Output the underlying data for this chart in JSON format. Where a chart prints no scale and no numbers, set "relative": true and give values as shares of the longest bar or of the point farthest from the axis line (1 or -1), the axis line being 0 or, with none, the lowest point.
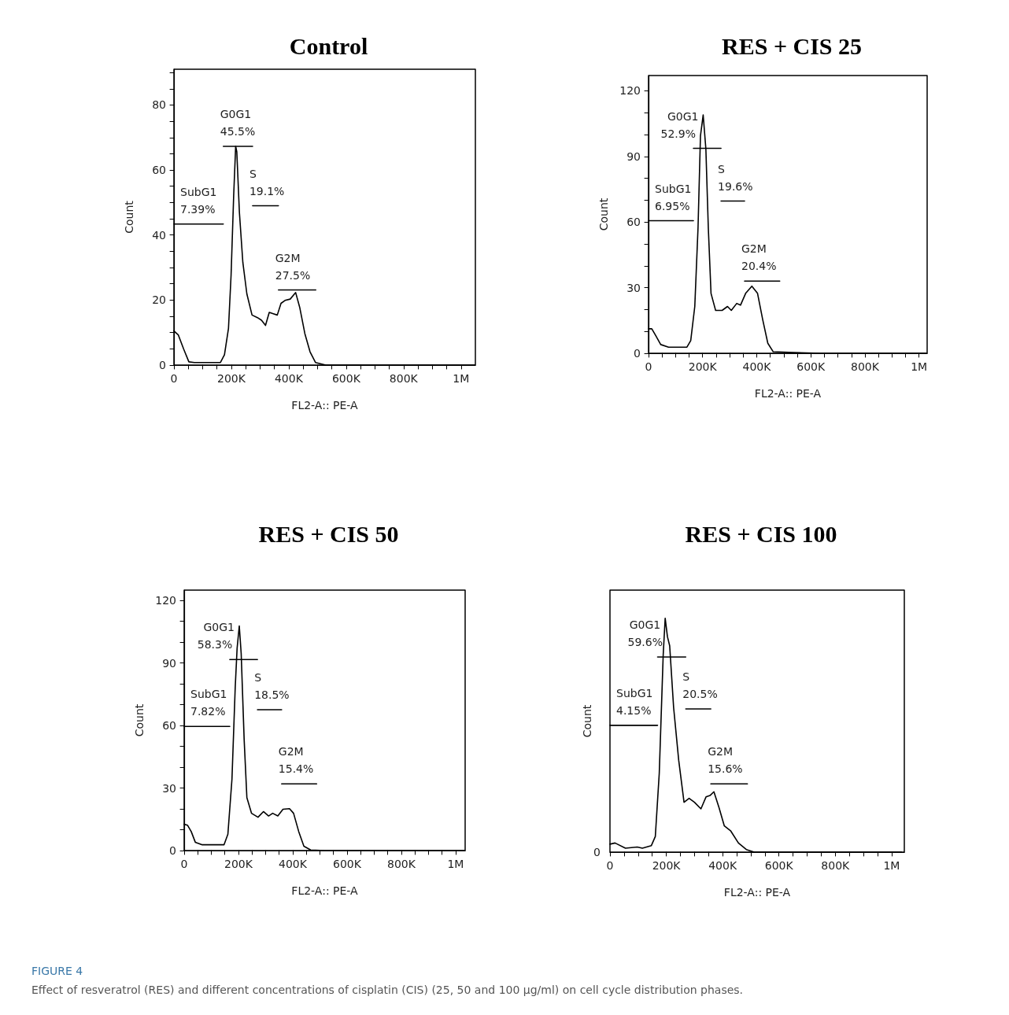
{
  "chart_data": [
    {
      "type": "line",
      "title": "Control",
      "xlabel": "FL2-A:: PE-A",
      "ylabel": "Count",
      "xlim": [
        0,
        1050000
      ],
      "ylim": [
        0,
        91
      ],
      "xticks": [
        {
          "value": 0,
          "label": "0"
        },
        {
          "value": 50000,
          "label": null
        },
        {
          "value": 100000,
          "label": null
        },
        {
          "value": 150000,
          "label": null
        },
        {
          "value": 200000,
          "label": "200K"
        },
        {
          "value": 250000,
          "label": null
        },
        {
          "value": 300000,
          "label": null
        },
        {
          "value": 350000,
          "label": null
        },
        {
          "value": 400000,
          "label": "400K"
        },
        {
          "value": 450000,
          "label": null
        },
        {
          "value": 500000,
          "label": null
        },
        {
          "value": 550000,
          "label": null
        },
        {
          "value": 600000,
          "label": "600K"
        },
        {
          "value": 650000,
          "label": null
        },
        {
          "value": 700000,
          "label": null
        },
        {
          "value": 750000,
          "label": null
        },
        {
          "value": 800000,
          "label": "800K"
        },
        {
          "value": 850000,
          "label": null
        },
        {
          "value": 900000,
          "label": null
        },
        {
          "value": 950000,
          "label": null
        },
        {
          "value": 1000000,
          "label": "1M"
        }
      ],
      "yticks": [
        0,
        {
          "value": 5,
          "label": null
        },
        {
          "value": 10,
          "label": null
        },
        {
          "value": 15,
          "label": null
        },
        20,
        {
          "value": 25,
          "label": null
        },
        {
          "value": 30,
          "label": null
        },
        {
          "value": 35,
          "label": null
        },
        40,
        {
          "value": 45,
          "label": null
        },
        {
          "value": 50,
          "label": null
        },
        {
          "value": 55,
          "label": null
        },
        60,
        {
          "value": 65,
          "label": null
        },
        {
          "value": 70,
          "label": null
        },
        {
          "value": 75,
          "label": null
        },
        80,
        {
          "value": 85,
          "label": null
        },
        {
          "value": 90,
          "label": null
        }
      ],
      "marker": "none",
      "line_style": "solid",
      "series": [
        {
          "color": "#000000",
          "x": [
            0,
            15000,
            34000,
            52000,
            71000,
            162000,
            176000,
            190000,
            199000,
            208000,
            215000,
            219000,
            228000,
            240000,
            254000,
            272000,
            291000,
            305000,
            319000,
            332000,
            346000,
            360000,
            373000,
            387000,
            405000,
            424000,
            438000,
            456000,
            474000,
            493000,
            529000,
            1048000
          ],
          "values": [
            10.5,
            9.3,
            4.9,
            1.0,
            0.8,
            0.8,
            3.2,
            11.3,
            27.6,
            51.9,
            67.3,
            65.6,
            47.0,
            31.6,
            21.9,
            15.4,
            14.6,
            13.8,
            12.2,
            16.2,
            15.8,
            15.4,
            19.0,
            19.9,
            20.3,
            22.3,
            17.8,
            9.7,
            4.1,
            0.8,
            0,
            0
          ]
        },
        {
          "color": "#000000",
          "x": [
            0,
            172000
          ],
          "values": [
            43.4,
            43.4
          ]
        },
        {
          "color": "#000000",
          "x": [
            172000,
            274000
          ],
          "values": [
            67.3,
            67.3
          ]
        },
        {
          "color": "#000000",
          "x": [
            274000,
            364000
          ],
          "values": [
            49.0,
            49.0
          ]
        },
        {
          "color": "#000000",
          "x": [
            364000,
            494000
          ],
          "values": [
            23.1,
            23.1
          ]
        }
      ],
      "annotations": [
        {
          "text": "G0G1",
          "x": 172000,
          "y": 67.3
        },
        {
          "text": "45.5%",
          "x": 172000,
          "y": 67.3
        },
        {
          "text": "S",
          "x": 274000,
          "y": 49.0
        },
        {
          "text": "19.1%",
          "x": 274000,
          "y": 49.0
        },
        {
          "text": "SubG1",
          "x": 0,
          "y": 43.4
        },
        {
          "text": "7.39%",
          "x": 0,
          "y": 43.4
        },
        {
          "text": "G2M",
          "x": 364000,
          "y": 23.1
        },
        {
          "text": "27.5%",
          "x": 364000,
          "y": 23.1
        }
      ]
    },
    {
      "type": "line",
      "title": "RES + CIS 25",
      "xlabel": "FL2-A:: PE-A",
      "ylabel": "Count",
      "xlim": [
        0,
        1030000
      ],
      "ylim": [
        0,
        127
      ],
      "xticks": [
        {
          "value": 0,
          "label": "0"
        },
        {
          "value": 50000,
          "label": null
        },
        {
          "value": 100000,
          "label": null
        },
        {
          "value": 150000,
          "label": null
        },
        {
          "value": 200000,
          "label": "200K"
        },
        {
          "value": 250000,
          "label": null
        },
        {
          "value": 300000,
          "label": null
        },
        {
          "value": 350000,
          "label": null
        },
        {
          "value": 400000,
          "label": "400K"
        },
        {
          "value": 450000,
          "label": null
        },
        {
          "value": 500000,
          "label": null
        },
        {
          "value": 550000,
          "label": null
        },
        {
          "value": 600000,
          "label": "600K"
        },
        {
          "value": 650000,
          "label": null
        },
        {
          "value": 700000,
          "label": null
        },
        {
          "value": 750000,
          "label": null
        },
        {
          "value": 800000,
          "label": "800K"
        },
        {
          "value": 850000,
          "label": null
        },
        {
          "value": 900000,
          "label": null
        },
        {
          "value": 950000,
          "label": null
        },
        {
          "value": 1000000,
          "label": "1M"
        }
      ],
      "yticks": [
        0,
        {
          "value": 10,
          "label": null
        },
        {
          "value": 20,
          "label": null
        },
        30,
        {
          "value": 40,
          "label": null
        },
        {
          "value": 50,
          "label": null
        },
        60,
        {
          "value": 70,
          "label": null
        },
        {
          "value": 80,
          "label": null
        },
        90,
        {
          "value": 100,
          "label": null
        },
        {
          "value": 110,
          "label": null
        },
        120
      ],
      "marker": "none",
      "line_style": "solid",
      "series": [
        {
          "color": "#000000",
          "x": [
            0,
            12000,
            26000,
            45000,
            74000,
            142000,
            156000,
            171000,
            183000,
            192000,
            202000,
            212000,
            221000,
            231000,
            248000,
            272000,
            292000,
            306000,
            326000,
            340000,
            359000,
            382000,
            403000,
            422000,
            441000,
            461000,
            519000,
            635000,
            1026000
          ],
          "values": [
            11.2,
            11.2,
            8.2,
            4.0,
            2.8,
            2.8,
            5.8,
            21.4,
            57.4,
            99.4,
            109,
            93.4,
            57.4,
            27.4,
            19.6,
            19.6,
            21.4,
            19.6,
            22.8,
            22.0,
            27.4,
            30.7,
            27.4,
            15.4,
            4.6,
            0.7,
            0.4,
            0,
            0
          ]
        },
        {
          "color": "#000000",
          "x": [
            0,
            166000
          ],
          "values": [
            60.6,
            60.6
          ]
        },
        {
          "color": "#000000",
          "x": [
            166000,
            268000
          ],
          "values": [
            93.7,
            93.7
          ]
        },
        {
          "color": "#000000",
          "x": [
            268000,
            355000
          ],
          "values": [
            69.6,
            69.6
          ]
        },
        {
          "color": "#000000",
          "x": [
            355000,
            485000
          ],
          "values": [
            33.0,
            33.0
          ]
        }
      ],
      "annotations": [
        {
          "text": "G0G1",
          "x": 166000,
          "y": 93.7
        },
        {
          "text": "52.9%",
          "x": 166000,
          "y": 93.7
        },
        {
          "text": "S",
          "x": 268000,
          "y": 69.6
        },
        {
          "text": "19.6%",
          "x": 268000,
          "y": 69.6
        },
        {
          "text": "SubG1",
          "x": 0,
          "y": 60.6
        },
        {
          "text": "6.95%",
          "x": 0,
          "y": 60.6
        },
        {
          "text": "G2M",
          "x": 355000,
          "y": 33.0
        },
        {
          "text": "20.4%",
          "x": 355000,
          "y": 33.0
        }
      ]
    },
    {
      "type": "line",
      "title": "RES + CIS 50",
      "xlabel": "FL2-A:: PE-A",
      "ylabel": "Count",
      "xlim": [
        0,
        1035000
      ],
      "ylim": [
        0,
        125
      ],
      "xticks": [
        {
          "value": 0,
          "label": "0"
        },
        {
          "value": 50000,
          "label": null
        },
        {
          "value": 100000,
          "label": null
        },
        {
          "value": 150000,
          "label": null
        },
        {
          "value": 200000,
          "label": "200K"
        },
        {
          "value": 250000,
          "label": null
        },
        {
          "value": 300000,
          "label": null
        },
        {
          "value": 350000,
          "label": null
        },
        {
          "value": 400000,
          "label": "400K"
        },
        {
          "value": 450000,
          "label": null
        },
        {
          "value": 500000,
          "label": null
        },
        {
          "value": 550000,
          "label": null
        },
        {
          "value": 600000,
          "label": "600K"
        },
        {
          "value": 650000,
          "label": null
        },
        {
          "value": 700000,
          "label": null
        },
        {
          "value": 750000,
          "label": null
        },
        {
          "value": 800000,
          "label": "800K"
        },
        {
          "value": 850000,
          "label": null
        },
        {
          "value": 900000,
          "label": null
        },
        {
          "value": 950000,
          "label": null
        },
        {
          "value": 1000000,
          "label": "1M"
        }
      ],
      "yticks": [
        0,
        {
          "value": 10,
          "label": null
        },
        {
          "value": 20,
          "label": null
        },
        30,
        {
          "value": 40,
          "label": null
        },
        {
          "value": 50,
          "label": null
        },
        60,
        {
          "value": 70,
          "label": null
        },
        {
          "value": 80,
          "label": null
        },
        90,
        {
          "value": 100,
          "label": null
        },
        {
          "value": 110,
          "label": null
        },
        120
      ],
      "marker": "none",
      "line_style": "solid",
      "series": [
        {
          "color": "#000000",
          "x": [
            0,
            12000,
            26000,
            41000,
            65000,
            147000,
            161000,
            176000,
            188000,
            195000,
            203000,
            210000,
            221000,
            231000,
            248000,
            272000,
            292000,
            311000,
            326000,
            345000,
            364000,
            388000,
            403000,
            422000,
            441000,
            466000,
            519000,
            1033000
          ],
          "values": [
            12.6,
            12.2,
            9.1,
            4.0,
            2.8,
            2.8,
            7.8,
            34.2,
            78.2,
            97.1,
            107.8,
            94.6,
            53.1,
            25.4,
            17.9,
            16.0,
            18.7,
            16.6,
            17.9,
            16.6,
            19.8,
            20.1,
            17.9,
            9.1,
            2.1,
            0.3,
            0,
            0
          ]
        },
        {
          "color": "#000000",
          "x": [
            0,
            168000
          ],
          "values": [
            59.6,
            59.6
          ]
        },
        {
          "color": "#000000",
          "x": [
            168000,
            270000
          ],
          "values": [
            91.7,
            91.7
          ]
        },
        {
          "color": "#000000",
          "x": [
            270000,
            359000
          ],
          "values": [
            67.6,
            67.6
          ]
        },
        {
          "color": "#000000",
          "x": [
            359000,
            488000
          ],
          "values": [
            32.0,
            32.0
          ]
        }
      ],
      "annotations": [
        {
          "text": "G0G1",
          "x": 168000,
          "y": 91.7
        },
        {
          "text": "58.3%",
          "x": 168000,
          "y": 91.7
        },
        {
          "text": "S",
          "x": 270000,
          "y": 67.6
        },
        {
          "text": "18.5%",
          "x": 270000,
          "y": 67.6
        },
        {
          "text": "SubG1",
          "x": 0,
          "y": 59.6
        },
        {
          "text": "7.82%",
          "x": 0,
          "y": 59.6
        },
        {
          "text": "G2M",
          "x": 359000,
          "y": 32.0
        },
        {
          "text": "15.4%",
          "x": 359000,
          "y": 32.0
        }
      ]
    },
    {
      "type": "line",
      "title": "RES + CIS 100",
      "xlabel": "FL2-A:: PE-A",
      "ylabel": "Count",
      "relative": true,
      "tick_labels": "x",
      "xlim": [
        0,
        1045000
      ],
      "xticks": [
        {
          "value": 0,
          "label": "0"
        },
        {
          "value": 50000,
          "label": null
        },
        {
          "value": 100000,
          "label": null
        },
        {
          "value": 150000,
          "label": null
        },
        {
          "value": 200000,
          "label": "200K"
        },
        {
          "value": 250000,
          "label": null
        },
        {
          "value": 300000,
          "label": null
        },
        {
          "value": 350000,
          "label": null
        },
        {
          "value": 400000,
          "label": "400K"
        },
        {
          "value": 450000,
          "label": null
        },
        {
          "value": 500000,
          "label": null
        },
        {
          "value": 550000,
          "label": null
        },
        {
          "value": 600000,
          "label": "600K"
        },
        {
          "value": 650000,
          "label": null
        },
        {
          "value": 700000,
          "label": null
        },
        {
          "value": 750000,
          "label": null
        },
        {
          "value": 800000,
          "label": "800K"
        },
        {
          "value": 850000,
          "label": null
        },
        {
          "value": 900000,
          "label": null
        },
        {
          "value": 950000,
          "label": null
        },
        {
          "value": 1000000,
          "label": "1M"
        }
      ],
      "marker": "none",
      "line_style": "solid",
      "series": [
        {
          "color": "#000000",
          "x": [
            0,
            18000,
            55000,
            97000,
            115000,
            147000,
            161000,
            175000,
            189000,
            196000,
            204000,
            212000,
            226000,
            244000,
            263000,
            281000,
            300000,
            323000,
            341000,
            355000,
            369000,
            387000,
            406000,
            429000,
            456000,
            484000,
            512000,
            1035000
          ],
          "values": [
            0.034,
            0.039,
            0.017,
            0.022,
            0.017,
            0.028,
            0.067,
            0.337,
            0.843,
            1.0,
            0.921,
            0.882,
            0.618,
            0.393,
            0.213,
            0.23,
            0.213,
            0.185,
            0.236,
            0.242,
            0.258,
            0.191,
            0.112,
            0.09,
            0.039,
            0.011,
            0,
            0
          ]
        },
        {
          "color": "#000000",
          "x": [
            0,
            169000
          ],
          "values": [
            0.542,
            0.542
          ]
        },
        {
          "color": "#000000",
          "x": [
            169000,
            269000
          ],
          "values": [
            0.834,
            0.834
          ]
        },
        {
          "color": "#000000",
          "x": [
            269000,
            358000
          ],
          "values": [
            0.612,
            0.612
          ]
        },
        {
          "color": "#000000",
          "x": [
            358000,
            488000
          ],
          "values": [
            0.292,
            0.292
          ]
        }
      ],
      "annotations": [
        "0",
        {
          "text": "G0G1",
          "x": 169000,
          "y": 0.834
        },
        {
          "text": "59.6%",
          "x": 169000,
          "y": 0.834
        },
        {
          "text": "S",
          "x": 269000,
          "y": 0.612
        },
        {
          "text": "20.5%",
          "x": 269000,
          "y": 0.612
        },
        {
          "text": "SubG1",
          "x": 0,
          "y": 0.542
        },
        {
          "text": "4.15%",
          "x": 0,
          "y": 0.542
        },
        {
          "text": "G2M",
          "x": 358000,
          "y": 0.292
        },
        {
          "text": "15.6%",
          "x": 358000,
          "y": 0.292
        }
      ]
    },
    {
      "type": "other",
      "annotations": [
        "FIGURE 4",
        "Effect of resveratrol (RES) and different concentrations of cisplatin (CIS) (25, 50 and 100 μg/ml) on cell cycle distribution phases."
      ]
    }
  ]
}
